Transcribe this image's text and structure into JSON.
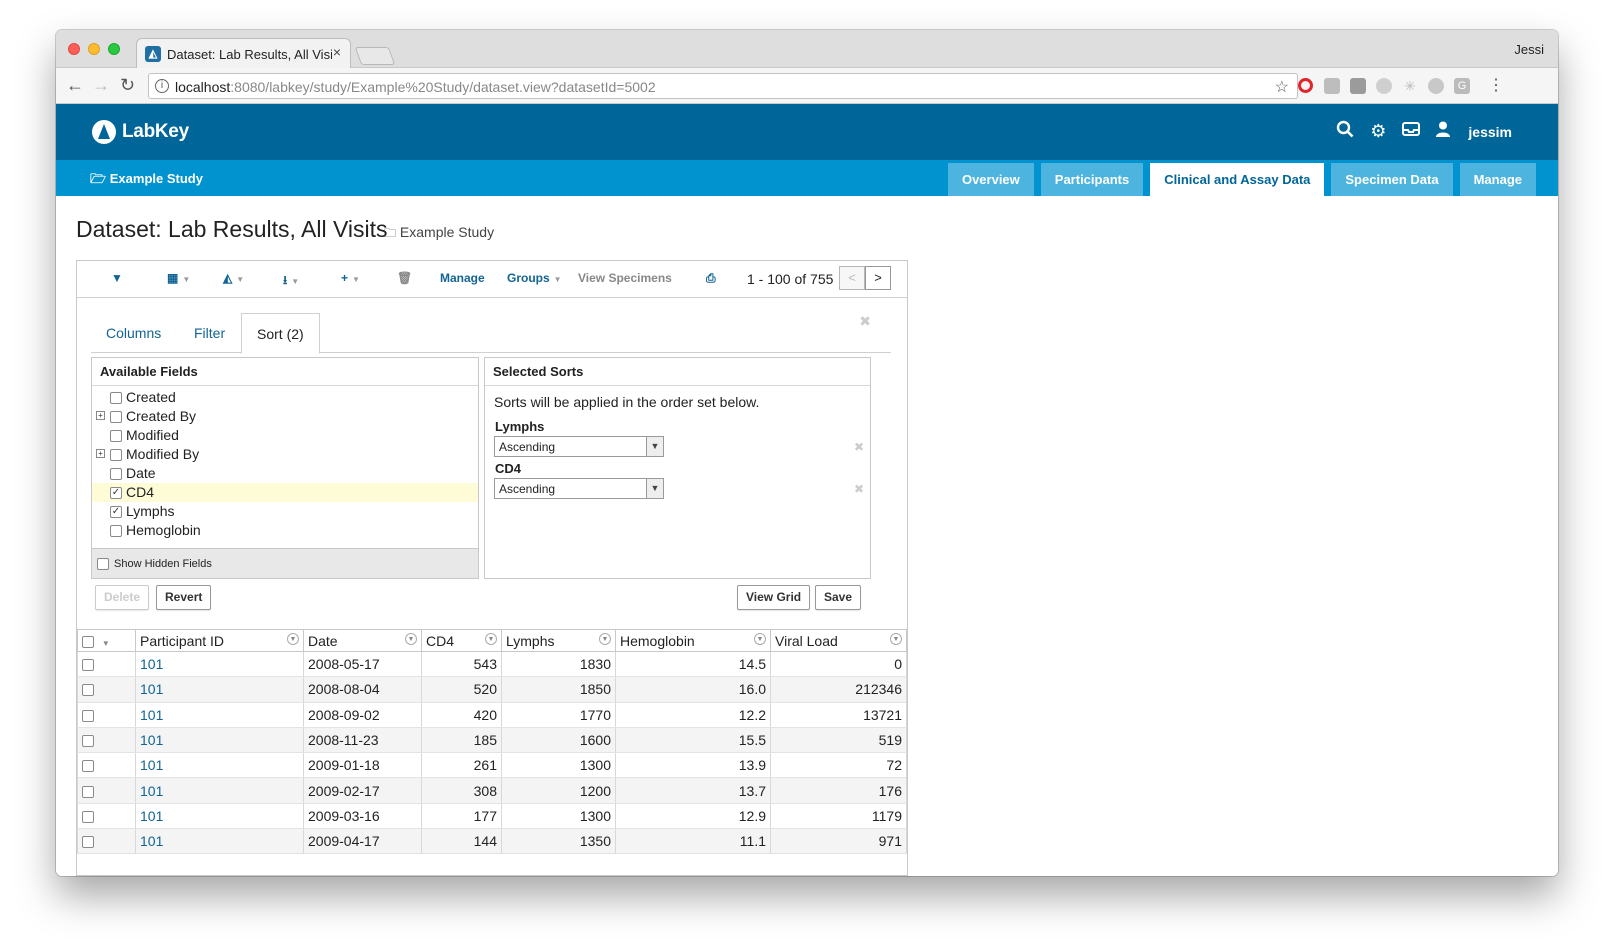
{
  "browser": {
    "tab_title": "Dataset: Lab Results, All Visits",
    "tab_close": "×",
    "profile_name": "Jessi",
    "url_host": "localhost",
    "url_rest": ":8080/labkey/study/Example%20Study/dataset.view?datasetId=5002",
    "icons": [
      "back-icon",
      "forward-icon",
      "reload-icon",
      "info-icon",
      "star-icon",
      "opera-icon",
      "extension-icon",
      "menu-icon"
    ]
  },
  "header": {
    "logo_text": "LabKey",
    "username": "jessim",
    "colors": {
      "primary": "#006699",
      "secondary": "#0093d0",
      "tab": "#4db4e0"
    }
  },
  "subheader": {
    "project": "Example Study",
    "tabs": [
      "Overview",
      "Participants",
      "Clinical and Assay Data",
      "Specimen Data",
      "Manage"
    ],
    "active_tab": "Clinical and Assay Data"
  },
  "page": {
    "title": "Dataset: Lab Results, All Visits",
    "folder": "Example Study"
  },
  "toolbar": {
    "manage": "Manage",
    "groups": "Groups",
    "view_specimens": "View Specimens",
    "pager": "1 - 100 of 755",
    "prev": "<",
    "next": ">"
  },
  "customize": {
    "tabs": [
      "Columns",
      "Filter",
      "Sort (2)"
    ],
    "available_fields_title": "Available Fields",
    "fields": [
      {
        "label": "Created",
        "checked": false,
        "expandable": false
      },
      {
        "label": "Created By",
        "checked": false,
        "expandable": true
      },
      {
        "label": "Modified",
        "checked": false,
        "expandable": false
      },
      {
        "label": "Modified By",
        "checked": false,
        "expandable": true
      },
      {
        "label": "Date",
        "checked": false,
        "expandable": false
      },
      {
        "label": "CD4",
        "checked": true,
        "expandable": false
      },
      {
        "label": "Lymphs",
        "checked": true,
        "expandable": false
      },
      {
        "label": "Hemoglobin",
        "checked": false,
        "expandable": false
      }
    ],
    "show_hidden": "Show Hidden Fields",
    "selected_sorts_title": "Selected Sorts",
    "sorts_desc": "Sorts will be applied in the order set below.",
    "sorts": [
      {
        "field": "Lymphs",
        "direction": "Ascending"
      },
      {
        "field": "CD4",
        "direction": "Ascending"
      }
    ],
    "buttons": {
      "delete": "Delete",
      "revert": "Revert",
      "view_grid": "View Grid",
      "save": "Save"
    }
  },
  "grid": {
    "columns": [
      "Participant ID",
      "Date",
      "CD4",
      "Lymphs",
      "Hemoglobin",
      "Viral Load"
    ],
    "rows": [
      [
        "101",
        "2008-05-17",
        "543",
        "1830",
        "14.5",
        "0"
      ],
      [
        "101",
        "2008-08-04",
        "520",
        "1850",
        "16.0",
        "212346"
      ],
      [
        "101",
        "2008-09-02",
        "420",
        "1770",
        "12.2",
        "13721"
      ],
      [
        "101",
        "2008-11-23",
        "185",
        "1600",
        "15.5",
        "519"
      ],
      [
        "101",
        "2009-01-18",
        "261",
        "1300",
        "13.9",
        "72"
      ],
      [
        "101",
        "2009-02-17",
        "308",
        "1200",
        "13.7",
        "176"
      ],
      [
        "101",
        "2009-03-16",
        "177",
        "1300",
        "12.9",
        "1179"
      ],
      [
        "101",
        "2009-04-17",
        "144",
        "1350",
        "11.1",
        "971"
      ]
    ]
  }
}
